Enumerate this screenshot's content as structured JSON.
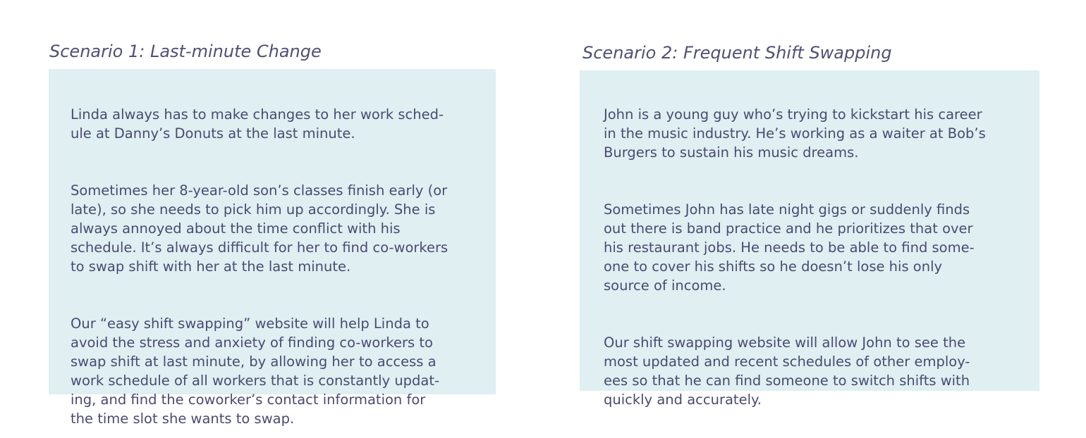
{
  "scenarios": [
    {
      "title": "Scenario 1: Last-minute Change",
      "paragraphs": [
        "Linda always has to make changes to her work sched-\nule at Danny’s Donuts at the last minute.",
        "Sometimes her 8-year-old son’s classes finish early (or\nlate), so she needs to pick him up accordingly. She is\nalways annoyed about the time conflict with his\nschedule. It’s always difficult for her to find co-workers\nto swap shift with her at the last minute.",
        "Our “easy shift swapping” website will help Linda to\navoid the stress and anxiety of finding co-workers to\nswap shift at last minute, by allowing her to access a\nwork schedule of all workers that is constantly updat-\ning, and find the coworker’s contact information for\nthe time slot she wants to swap."
      ]
    },
    {
      "title": "Scenario 2: Frequent Shift Swapping",
      "paragraphs": [
        "John is a young guy who’s trying to kickstart his career\nin the music industry. He’s working as a waiter at Bob’s\nBurgers to sustain his music dreams.",
        "Sometimes John has late night gigs or suddenly finds\nout there is band practice and he prioritizes that over\nhis restaurant jobs. He needs to be able to find some-\none to cover his shifts so he doesn’t lose his only\nsource of income.",
        "Our shift swapping website will allow John to see the\nmost updated and recent schedules of other employ-\nees so that he can find someone to switch shifts with\nquickly and accurately."
      ]
    }
  ],
  "colors": {
    "card_background": "#dfeff2",
    "text": "#4a4a72",
    "title": "#4f4f78"
  }
}
